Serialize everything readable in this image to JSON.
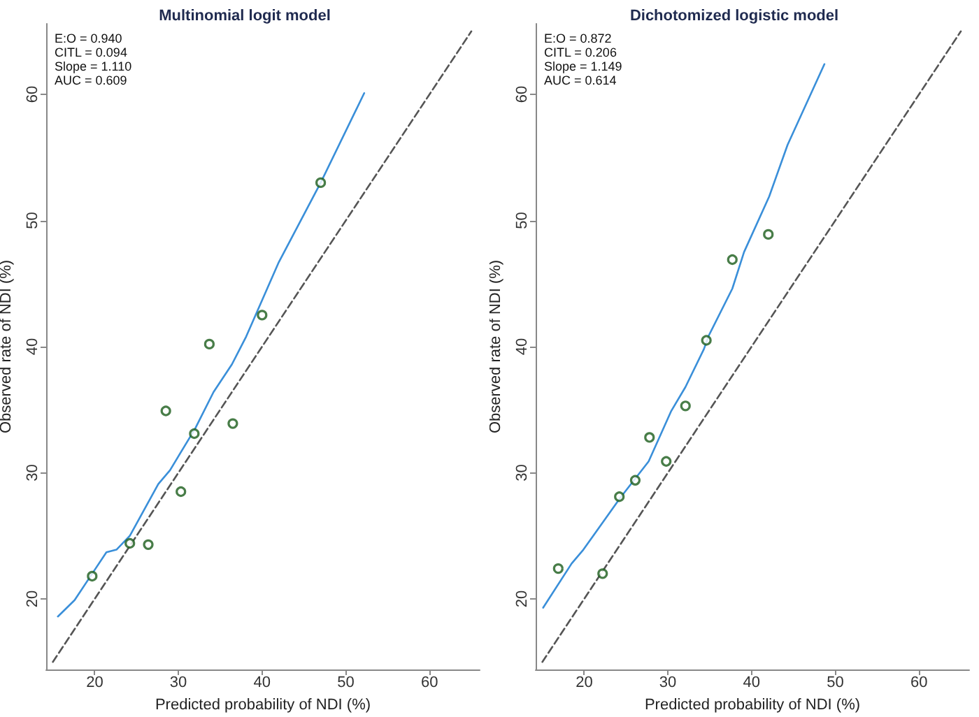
{
  "chart_data": [
    {
      "type": "scatter",
      "title": "Multinomial logit model",
      "xlabel": "Predicted probability of NDI (%)",
      "ylabel": "Observed rate of NDI (%)",
      "annotations": [
        "E:O = 0.940",
        "CITL = 0.094",
        "Slope = 1.110",
        "AUC = 0.609"
      ],
      "xlim": [
        14.2,
        66
      ],
      "ylim": [
        14.4,
        65.6
      ],
      "xticks": [
        20,
        30,
        40,
        50,
        60
      ],
      "yticks": [
        20,
        30,
        40,
        50,
        60
      ],
      "grid": false,
      "series": [
        {
          "type": "line",
          "color": "#3a8fd9",
          "marker": "none",
          "line_style": "solid",
          "x": [
            15.6,
            17.6,
            19.7,
            21.4,
            22.6,
            24.2,
            27.6,
            29,
            32,
            34.2,
            36.4,
            38.1,
            42,
            47,
            52.2
          ],
          "values": [
            18.6,
            19.9,
            22,
            23.7,
            23.9,
            25,
            29.1,
            30.2,
            33.5,
            36.4,
            38.6,
            40.8,
            46.7,
            53,
            60.1
          ]
        },
        {
          "type": "line",
          "color": "#555555",
          "marker": "none",
          "line_style": "dashed",
          "x": [
            15,
            65
          ],
          "values": [
            15,
            65
          ]
        },
        {
          "color": "#1a5c1a",
          "marker": "circle",
          "x": [
            19.7,
            24.2,
            26.4,
            28.5,
            30.3,
            31.9,
            33.7,
            36.5,
            40,
            47
          ],
          "values": [
            21.8,
            24.4,
            24.3,
            34.9,
            28.5,
            33.1,
            40.2,
            33.9,
            42.5,
            53
          ]
        }
      ]
    },
    {
      "type": "scatter",
      "title": "Dichotomized logistic model",
      "xlabel": "Predicted probability of NDI (%)",
      "ylabel": "Observed rate of NDI (%)",
      "annotations": [
        "E:O = 0.872",
        "CITL = 0.206",
        "Slope = 1.149",
        "AUC = 0.614"
      ],
      "xlim": [
        14.2,
        66
      ],
      "ylim": [
        14.4,
        65.6
      ],
      "xticks": [
        20,
        30,
        40,
        50,
        60
      ],
      "yticks": [
        20,
        30,
        40,
        50,
        60
      ],
      "grid": false,
      "series": [
        {
          "type": "line",
          "color": "#3a8fd9",
          "marker": "none",
          "line_style": "solid",
          "x": [
            15.1,
            18.5,
            19.9,
            24.3,
            27.7,
            30.4,
            32.1,
            34.3,
            34.9,
            37.7,
            39.1,
            42.1,
            44.3,
            48.7
          ],
          "values": [
            19.3,
            22.8,
            23.9,
            28,
            30.9,
            34.9,
            36.8,
            39.8,
            40.9,
            44.6,
            47.5,
            51.9,
            56,
            62.4
          ]
        },
        {
          "type": "line",
          "color": "#555555",
          "marker": "none",
          "line_style": "dashed",
          "x": [
            15,
            65
          ],
          "values": [
            15,
            65
          ]
        },
        {
          "color": "#1a5c1a",
          "marker": "circle",
          "x": [
            16.9,
            22.2,
            24.2,
            26.1,
            27.8,
            29.8,
            32.1,
            34.6,
            37.7,
            42
          ],
          "values": [
            22.4,
            22,
            28.1,
            29.4,
            32.8,
            30.9,
            35.3,
            40.5,
            46.9,
            48.9
          ]
        }
      ]
    }
  ]
}
